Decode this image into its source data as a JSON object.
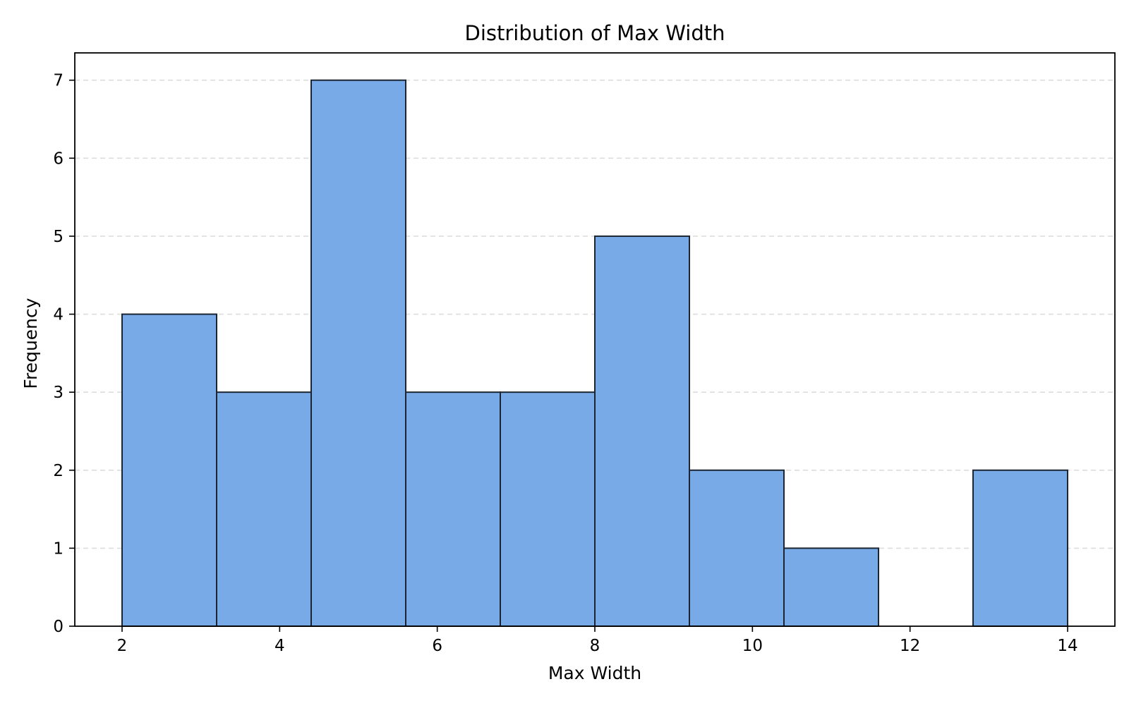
{
  "colors": {
    "bar_fill": "#77aae6",
    "bar_edge": "#1c2633",
    "grid": "#dddddd",
    "axis": "#000000",
    "background": "#ffffff"
  },
  "chart_data": {
    "type": "bar",
    "subtype": "histogram",
    "title": "Distribution of Max Width",
    "xlabel": "Max Width",
    "ylabel": "Frequency",
    "bin_edges": [
      2.0,
      3.2,
      4.4,
      5.6,
      6.8,
      8.0,
      9.2,
      10.4,
      11.6,
      12.8,
      14.0
    ],
    "values": [
      4,
      3,
      7,
      3,
      3,
      5,
      2,
      1,
      0,
      2
    ],
    "xlim": [
      1.4,
      14.6
    ],
    "ylim": [
      0,
      7.35
    ],
    "xticks": [
      2,
      4,
      6,
      8,
      10,
      12,
      14
    ],
    "yticks": [
      0,
      1,
      2,
      3,
      4,
      5,
      6,
      7
    ],
    "grid": {
      "x": false,
      "y": true,
      "style": "dashed"
    },
    "legend": "none"
  }
}
